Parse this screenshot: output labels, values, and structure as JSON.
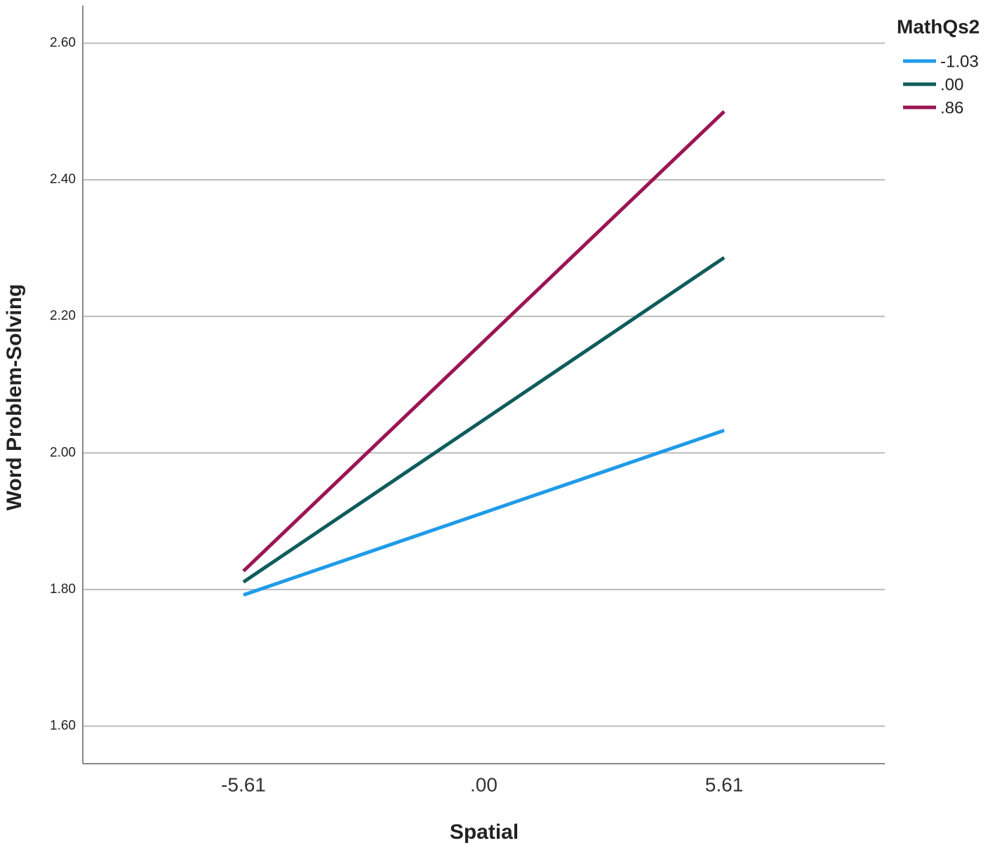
{
  "chart_data": {
    "type": "line",
    "x_label": "Spatial",
    "y_label": "Word Problem-Solving",
    "legend_title": "MathQs2",
    "x": [
      -5.61,
      5.61
    ],
    "series": [
      {
        "name": "-1.03",
        "color": "#1f9be8",
        "values": [
          1.792,
          2.033
        ]
      },
      {
        "name": ".00",
        "color": "#0f5c5c",
        "values": [
          1.811,
          2.286
        ]
      },
      {
        "name": ".86",
        "color": "#9b1553",
        "values": [
          1.827,
          2.5
        ]
      }
    ],
    "xlim": [
      -9.36,
      9.36
    ],
    "xticks": [
      -5.61,
      {
        "value": 0,
        "label": ".00"
      },
      5.61
    ],
    "ylim": [
      1.545,
      2.655
    ],
    "yticks": [
      {
        "value": 1.6,
        "label": "1.60"
      },
      {
        "value": 1.8,
        "label": "1.80"
      },
      {
        "value": 2.0,
        "label": "2.00"
      },
      {
        "value": 2.2,
        "label": "2.20"
      },
      {
        "value": 2.4,
        "label": "2.40"
      },
      {
        "value": 2.6,
        "label": "2.60"
      }
    ],
    "grid": true,
    "legend_position": "top-right"
  }
}
